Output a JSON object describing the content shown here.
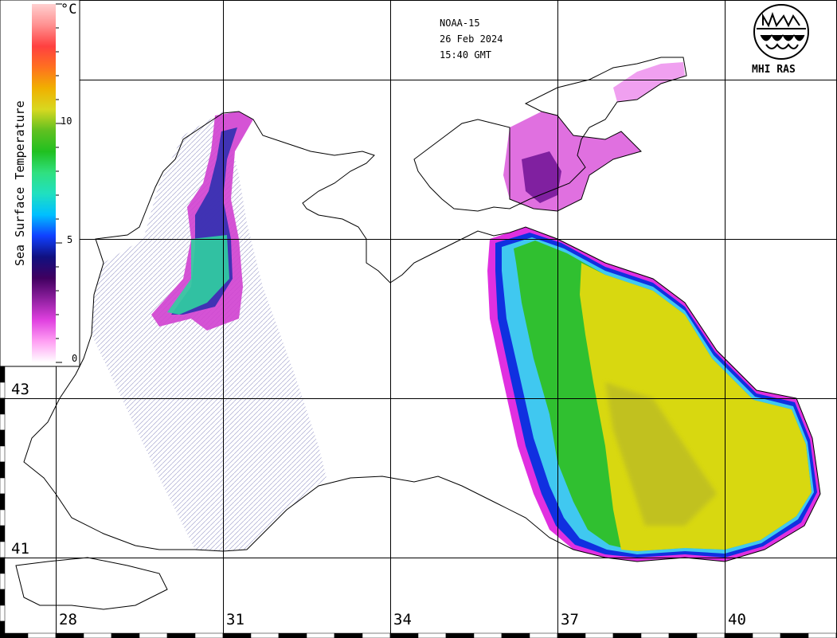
{
  "header": {
    "satellite": "NOAA-15",
    "date": "26 Feb 2024",
    "time": "15:40 GMT"
  },
  "logo": {
    "text": "MHI RAS",
    "icon": "mhi-logo-icon"
  },
  "colorbar": {
    "title": "Sea Surface Temperature",
    "unit": "°C",
    "ticks": [
      "10",
      "5",
      "0"
    ],
    "range": [
      0,
      15
    ],
    "colors": [
      "#ffffff",
      "#ff9ff3",
      "#e040e0",
      "#9020a0",
      "#400060",
      "#101080",
      "#1040ff",
      "#00c0ff",
      "#20e0c0",
      "#30e080",
      "#20c020",
      "#60c020",
      "#d8d820",
      "#f0b000",
      "#ff7020",
      "#ff4040",
      "#ff9090",
      "#ffd0d0"
    ]
  },
  "graticule": {
    "longitudes": [
      "28",
      "31",
      "34",
      "37",
      "40"
    ],
    "latitudes": [
      "43",
      "41"
    ]
  },
  "colors": {
    "warm_water": "#d8d810",
    "mid_water": "#30c030",
    "cool_water": "#40c0f0",
    "cold_edge": "#d040d0",
    "coastline": "#000000",
    "grid": "#000000"
  }
}
